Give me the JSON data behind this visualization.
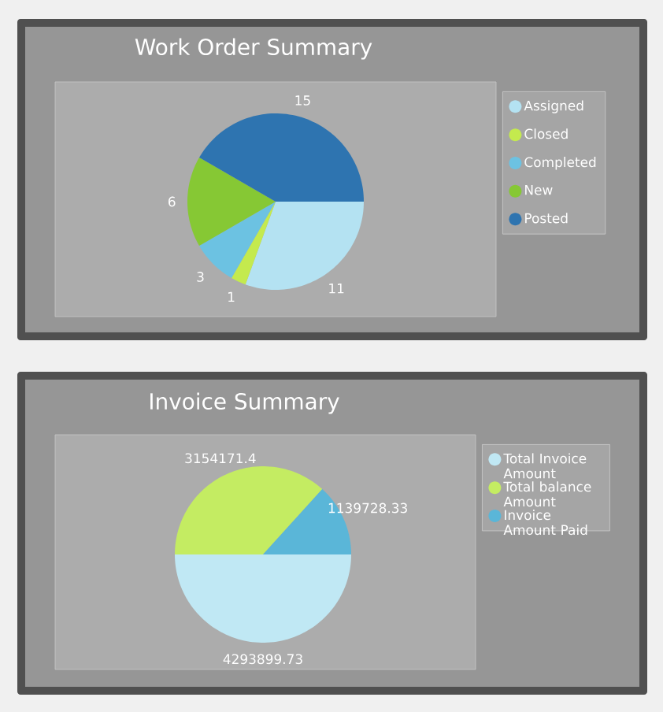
{
  "chart_data": [
    {
      "type": "pie",
      "title": "Work Order Summary",
      "categories": [
        "Assigned",
        "Closed",
        "Completed",
        "New",
        "Posted"
      ],
      "values": [
        11,
        1,
        3,
        6,
        15
      ],
      "colors": [
        "#b4e2f2",
        "#c4ea4e",
        "#6cc2e2",
        "#86c834",
        "#2e74b0"
      ],
      "data_labels": true,
      "legend": "right"
    },
    {
      "type": "pie",
      "title": "Invoice Summary",
      "categories": [
        "Total Invoice Amount",
        "Total balance Amount",
        "Invoice Amount Paid"
      ],
      "values": [
        4293899.73,
        3154171.4,
        1139728.33
      ],
      "colors": [
        "#c0e8f4",
        "#c4ec62",
        "#5ab6d8"
      ],
      "data_labels": true,
      "legend": "right"
    }
  ]
}
